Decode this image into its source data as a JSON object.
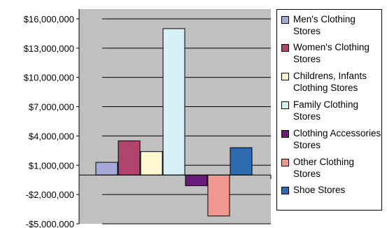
{
  "chart_data": {
    "type": "bar",
    "title": "",
    "xlabel": "",
    "ylabel": "",
    "ylim": [
      -5000000,
      17000000
    ],
    "ytick_values": [
      16000000,
      13000000,
      10000000,
      7000000,
      4000000,
      1000000,
      -2000000,
      -5000000
    ],
    "ytick_labels": [
      "$16,000,000",
      "$13,000,000",
      "$10,000,000",
      "$7,000,000",
      "$4,000,000",
      "$1,000,000",
      "-$2,000,000",
      "-$5,000,000"
    ],
    "grid": true,
    "legend_position": "right",
    "series": [
      {
        "name": "Men's Clothing Stores",
        "value": 1300000,
        "color": "#a8a8d8"
      },
      {
        "name": "Women's Clothing Stores",
        "value": 3500000,
        "color": "#b0446c"
      },
      {
        "name": "Childrens, Infants Clothing Stores",
        "value": 2400000,
        "color": "#fff8d0"
      },
      {
        "name": "Family Clothing Stores",
        "value": 15000000,
        "color": "#d8f0f8"
      },
      {
        "name": "Clothing Accessories Stores",
        "value": -1100000,
        "color": "#6a1a7a"
      },
      {
        "name": "Other Clothing Stores",
        "value": -4200000,
        "color": "#f09890"
      },
      {
        "name": "Shoe Stores",
        "value": 2800000,
        "color": "#2e6ab0"
      }
    ],
    "colors": {
      "plot_background": "#c0c0c0",
      "gridline": "#000000"
    }
  }
}
